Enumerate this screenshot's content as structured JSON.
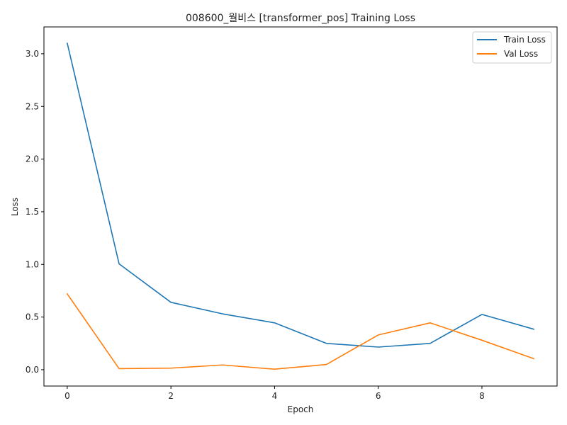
{
  "chart_data": {
    "type": "line",
    "title": "008600_월비스 [transformer_pos] Training Loss",
    "xlabel": "Epoch",
    "ylabel": "Loss",
    "x": [
      0,
      1,
      2,
      3,
      4,
      5,
      6,
      7,
      8,
      9
    ],
    "xlim": [
      -0.45,
      9.45
    ],
    "ylim": [
      -0.155,
      3.255
    ],
    "xticks": [
      0,
      2,
      4,
      6,
      8
    ],
    "yticks": [
      0.0,
      0.5,
      1.0,
      1.5,
      2.0,
      2.5,
      3.0
    ],
    "xtick_labels": [
      "0",
      "2",
      "4",
      "6",
      "8"
    ],
    "ytick_labels": [
      "0.0",
      "0.5",
      "1.0",
      "1.5",
      "2.0",
      "2.5",
      "3.0"
    ],
    "grid": false,
    "legend_position": "top-right",
    "series": [
      {
        "name": "Train Loss",
        "color": "#1f77b4",
        "values": [
          3.1,
          1.005,
          0.64,
          0.53,
          0.445,
          0.25,
          0.215,
          0.25,
          0.525,
          0.385
        ]
      },
      {
        "name": "Val Loss",
        "color": "#ff7f0e",
        "values": [
          0.72,
          0.01,
          0.015,
          0.045,
          0.005,
          0.05,
          0.33,
          0.445,
          0.28,
          0.105
        ]
      }
    ]
  }
}
